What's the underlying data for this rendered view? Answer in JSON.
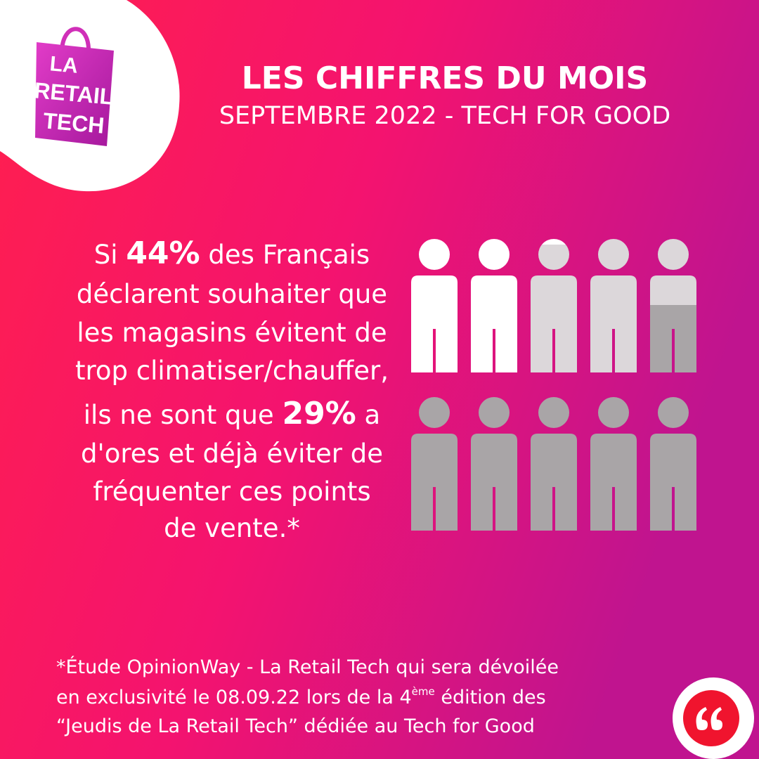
{
  "logo": {
    "lines": [
      "LA",
      "RETAIL",
      "TECH"
    ]
  },
  "header": {
    "title": "LES CHIFFRES DU MOIS",
    "subtitle": "SEPTEMBRE 2022 - TECH FOR GOOD"
  },
  "statement": [
    [
      "Si ",
      "44%",
      " des Français"
    ],
    [
      "déclarent souhaiter que"
    ],
    [
      "les magasins évitent de"
    ],
    [
      "trop climatiser/chauffer,"
    ],
    [
      "ils ne sont que ",
      "29%",
      " a"
    ],
    [
      "d'ores et déjà éviter de"
    ],
    [
      "fréquenter ces points"
    ],
    [
      "de vente.*"
    ]
  ],
  "footnote": [
    [
      "*Étude OpinionWay - La Retail Tech qui sera dévoilée"
    ],
    [
      "en exclusivité le 08.09.22 lors de la 4",
      "ème",
      " édition des"
    ],
    [
      "“Jeudis de La Retail Tech” dédiée au Tech for Good"
    ]
  ]
}
